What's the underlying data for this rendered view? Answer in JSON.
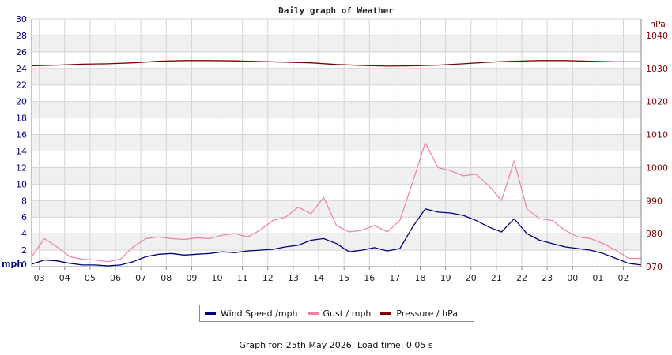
{
  "chart_data": {
    "type": "line",
    "title": "Daily graph of Weather",
    "left_axis": {
      "unit_label": "mph",
      "ylim": [
        0,
        30
      ],
      "ticks": [
        0,
        2,
        4,
        6,
        8,
        10,
        12,
        14,
        16,
        18,
        20,
        22,
        24,
        26,
        28,
        30
      ]
    },
    "right_axis": {
      "unit_label": "hPa",
      "ylim": [
        970,
        1045
      ],
      "ticks": [
        970,
        980,
        990,
        1000,
        1010,
        1020,
        1030,
        1040
      ]
    },
    "x_tick_labels": [
      "03",
      "04",
      "05",
      "06",
      "07",
      "08",
      "09",
      "10",
      "11",
      "12",
      "13",
      "14",
      "15",
      "16",
      "17",
      "18",
      "19",
      "20",
      "21",
      "22",
      "23",
      "00",
      "01",
      "02"
    ],
    "xlim_hours": [
      0,
      24
    ],
    "grid": true,
    "series": [
      {
        "name": "Wind Speed /mph",
        "color": "#000080",
        "axis": "left",
        "x": [
          0,
          0.5,
          1,
          1.5,
          2,
          2.5,
          3,
          3.5,
          4,
          4.5,
          5,
          5.5,
          6,
          6.5,
          7,
          7.5,
          8,
          8.5,
          9,
          9.5,
          10,
          10.5,
          11,
          11.5,
          12,
          12.5,
          13,
          13.5,
          14,
          14.5,
          15,
          15.5,
          16,
          16.5,
          17,
          17.5,
          18,
          18.5,
          19,
          19.5,
          20,
          20.5,
          21,
          21.5,
          22,
          22.5,
          23,
          23.5,
          24
        ],
        "values": [
          0.3,
          0.8,
          0.7,
          0.4,
          0.2,
          0.2,
          0.1,
          0.2,
          0.6,
          1.2,
          1.5,
          1.6,
          1.4,
          1.5,
          1.6,
          1.8,
          1.7,
          1.9,
          2.0,
          2.1,
          2.4,
          2.6,
          3.2,
          3.4,
          2.8,
          1.8,
          2.0,
          2.3,
          1.9,
          2.2,
          4.8,
          7.0,
          6.6,
          6.5,
          6.2,
          5.6,
          4.8,
          4.2,
          5.8,
          4.0,
          3.2,
          2.8,
          2.4,
          2.2,
          2.0,
          1.6,
          1.0,
          0.4,
          0.2
        ]
      },
      {
        "name": "Gust / mph",
        "color": "#f080a0",
        "axis": "left",
        "x": [
          0,
          0.5,
          1,
          1.5,
          2,
          2.5,
          3,
          3.5,
          4,
          4.5,
          5,
          5.5,
          6,
          6.5,
          7,
          7.5,
          8,
          8.5,
          9,
          9.5,
          10,
          10.5,
          11,
          11.5,
          12,
          12.5,
          13,
          13.5,
          14,
          14.5,
          15,
          15.5,
          16,
          16.5,
          17,
          17.5,
          18,
          18.5,
          19,
          19.5,
          20,
          20.5,
          21,
          21.5,
          22,
          22.5,
          23,
          23.5,
          24
        ],
        "values": [
          1.2,
          3.4,
          2.4,
          1.2,
          0.9,
          0.8,
          0.6,
          0.9,
          2.4,
          3.4,
          3.6,
          3.4,
          3.3,
          3.5,
          3.4,
          3.8,
          4.0,
          3.6,
          4.4,
          5.6,
          6.0,
          7.2,
          6.4,
          8.4,
          5.0,
          4.2,
          4.4,
          5.0,
          4.2,
          5.6,
          10.2,
          15.0,
          12.0,
          11.6,
          11.0,
          11.2,
          9.8,
          8.0,
          12.8,
          7.0,
          5.8,
          5.6,
          4.4,
          3.6,
          3.4,
          2.8,
          2.0,
          1.0,
          1.0
        ]
      },
      {
        "name": "Pressure / hPa",
        "color": "#800000",
        "axis": "right",
        "x": [
          0,
          1,
          2,
          3,
          4,
          5,
          6,
          7,
          8,
          9,
          10,
          11,
          12,
          13,
          14,
          15,
          16,
          17,
          18,
          19,
          20,
          21,
          22,
          23,
          24
        ],
        "values": [
          1030.8,
          1031.0,
          1031.3,
          1031.4,
          1031.7,
          1032.2,
          1032.4,
          1032.4,
          1032.3,
          1032.1,
          1031.9,
          1031.7,
          1031.2,
          1030.9,
          1030.7,
          1030.8,
          1031.0,
          1031.4,
          1031.9,
          1032.2,
          1032.4,
          1032.4,
          1032.2,
          1032.0,
          1032.0
        ]
      }
    ]
  },
  "legend": {
    "items": [
      "Wind Speed /mph",
      "Gust / mph",
      "Pressure / hPa"
    ]
  },
  "footer_text": "Graph for: 25th May 2026; Load time: 0.05 s"
}
